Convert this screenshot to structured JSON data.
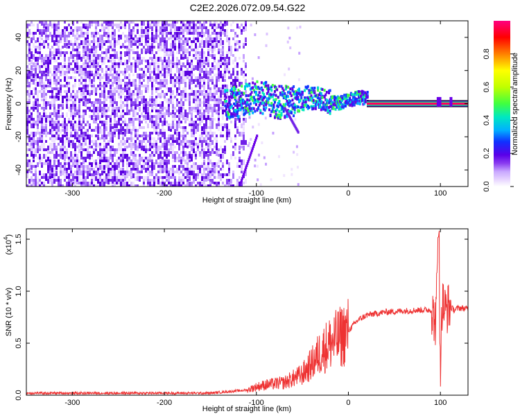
{
  "title": "C2E2.2026.072.09.54.G22",
  "chart_data": [
    {
      "type": "heatmap",
      "xlabel": "Height of straight line (km)",
      "ylabel": "Frequency (Hz)",
      "xlim": [
        -350,
        130
      ],
      "ylim": [
        -50,
        50
      ],
      "xticks": [
        "-300",
        "-200",
        "-100",
        "0",
        "100"
      ],
      "yticks": [
        "-40",
        "-20",
        "0",
        "20",
        "40"
      ],
      "colorbar": {
        "label": "Normalized spectral amplitude",
        "range": [
          0,
          1
        ],
        "ticks": [
          "0.0",
          "0.2",
          "0.4",
          "0.6",
          "0.8"
        ],
        "colors": [
          "#ffffff",
          "#e8d6ff",
          "#c9a8ff",
          "#8a3cf0",
          "#6a00e8",
          "#1030ff",
          "#00c8ff",
          "#00ff90",
          "#a0ff00",
          "#ffff00",
          "#ff8000",
          "#ff0000",
          "#ff0080"
        ]
      },
      "features": [
        {
          "name": "noise",
          "x_range": [
            -350,
            -100
          ],
          "freq_range": [
            -50,
            50
          ]
        },
        {
          "name": "carrier-transition",
          "x_range": [
            -130,
            20
          ],
          "freq_center": 2
        },
        {
          "name": "carrier-strong",
          "x_range": [
            20,
            130
          ],
          "freq": 0
        }
      ]
    },
    {
      "type": "line",
      "xlabel": "Height of straight line (km)",
      "ylabel": "SNR (10 * v/v)",
      "yscale_label": "(x10",
      "yscale_exp": "4",
      "xlim": [
        -350,
        130
      ],
      "ylim": [
        0,
        1.6
      ],
      "xticks": [
        "-300",
        "-200",
        "-100",
        "0",
        "100"
      ],
      "yticks": [
        "0.0",
        "0.5",
        "1.0",
        "1.5"
      ],
      "color": "#ee3333",
      "x": [
        -350,
        -250,
        -150,
        -110,
        -100,
        -90,
        -70,
        -50,
        -40,
        -30,
        -20,
        -10,
        0,
        10,
        20,
        40,
        60,
        80,
        90,
        95,
        98,
        100,
        102,
        105,
        110,
        115,
        120,
        130
      ],
      "y": [
        0.02,
        0.02,
        0.02,
        0.05,
        0.08,
        0.1,
        0.12,
        0.2,
        0.3,
        0.42,
        0.5,
        0.55,
        0.62,
        0.72,
        0.77,
        0.8,
        0.81,
        0.82,
        0.82,
        0.7,
        1.55,
        0.3,
        0.9,
        0.82,
        0.85,
        0.82,
        0.84,
        0.83
      ]
    }
  ]
}
